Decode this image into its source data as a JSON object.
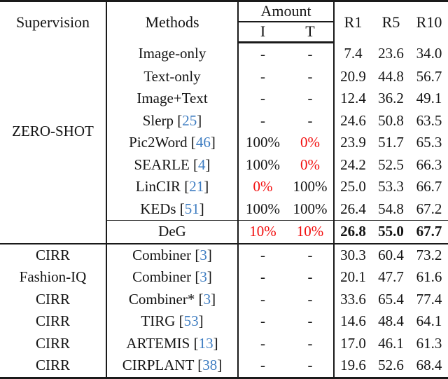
{
  "header": {
    "supervision": "Supervision",
    "methods": "Methods",
    "amount": "Amount",
    "amount_i": "I",
    "amount_t": "T",
    "r1": "R1",
    "r5": "R5",
    "r10": "R10"
  },
  "colors": {
    "citation_link": "#3d7cc1",
    "highlight_red": "#f20d0d",
    "rule": "#1a1a1a"
  },
  "rows": [
    {
      "supervision": "ZERO-SHOT",
      "method": "Image-only",
      "i": "-",
      "t": "-",
      "r1": "7.4",
      "r5": "23.6",
      "r10": "34.0"
    },
    {
      "method": "Text-only",
      "i": "-",
      "t": "-",
      "r1": "20.9",
      "r5": "44.8",
      "r10": "56.7"
    },
    {
      "method": "Image+Text",
      "i": "-",
      "t": "-",
      "r1": "12.4",
      "r5": "36.2",
      "r10": "49.1"
    },
    {
      "method": "Slerp",
      "cite_open": " [",
      "cite": "25",
      "cite_close": "]",
      "i": "-",
      "t": "-",
      "r1": "24.6",
      "r5": "50.8",
      "r10": "63.5"
    },
    {
      "method": "Pic2Word",
      "cite_open": " [",
      "cite": "46",
      "cite_close": "]",
      "i": "100%",
      "t": "0%",
      "t_red": true,
      "r1": "23.9",
      "r5": "51.7",
      "r10": "65.3"
    },
    {
      "method": "SEARLE",
      "cite_open": " [",
      "cite": "4",
      "cite_close": "]",
      "i": "100%",
      "t": "0%",
      "t_red": true,
      "r1": "24.2",
      "r5": "52.5",
      "r10": "66.3"
    },
    {
      "method": "LinCIR",
      "cite_open": " [",
      "cite": "21",
      "cite_close": "]",
      "i": "0%",
      "i_red": true,
      "t": "100%",
      "r1": "25.0",
      "r5": "53.3",
      "r10": "66.7"
    },
    {
      "method": "KEDs",
      "cite_open": " [",
      "cite": "51",
      "cite_close": "]",
      "i": "100%",
      "t": "100%",
      "r1": "26.4",
      "r5": "54.8",
      "r10": "67.2"
    },
    {
      "supervision": "",
      "method": "DeG",
      "i": "10%",
      "i_red": true,
      "t": "10%",
      "t_red": true,
      "r_bold": true,
      "r1": "26.8",
      "r5": "55.0",
      "r10": "67.7"
    },
    {
      "supervision": "CIRR",
      "method": "Combiner",
      "cite_open": " [",
      "cite": "3",
      "cite_close": "]",
      "i": "-",
      "t": "-",
      "r1": "30.3",
      "r5": "60.4",
      "r10": "73.2"
    },
    {
      "supervision": "Fashion-IQ",
      "method": "Combiner",
      "cite_open": " [",
      "cite": "3",
      "cite_close": "]",
      "i": "-",
      "t": "-",
      "r1": "20.1",
      "r5": "47.7",
      "r10": "61.6"
    },
    {
      "supervision": "CIRR",
      "method": "Combiner*",
      "cite_open": " [",
      "cite": "3",
      "cite_close": "]",
      "i": "-",
      "t": "-",
      "r1": "33.6",
      "r5": "65.4",
      "r10": "77.4"
    },
    {
      "supervision": "CIRR",
      "method": "TIRG",
      "cite_open": " [",
      "cite": "53",
      "cite_close": "]",
      "i": "-",
      "t": "-",
      "r1": "14.6",
      "r5": "48.4",
      "r10": "64.1"
    },
    {
      "supervision": "CIRR",
      "method": "ARTEMIS",
      "cite_open": " [",
      "cite": "13",
      "cite_close": "]",
      "i": "-",
      "t": "-",
      "r1": "17.0",
      "r5": "46.1",
      "r10": "61.3"
    },
    {
      "supervision": "CIRR",
      "method": "CIRPLANT",
      "cite_open": " [",
      "cite": "38",
      "cite_close": "]",
      "i": "-",
      "t": "-",
      "r1": "19.6",
      "r5": "52.6",
      "r10": "68.4"
    }
  ]
}
